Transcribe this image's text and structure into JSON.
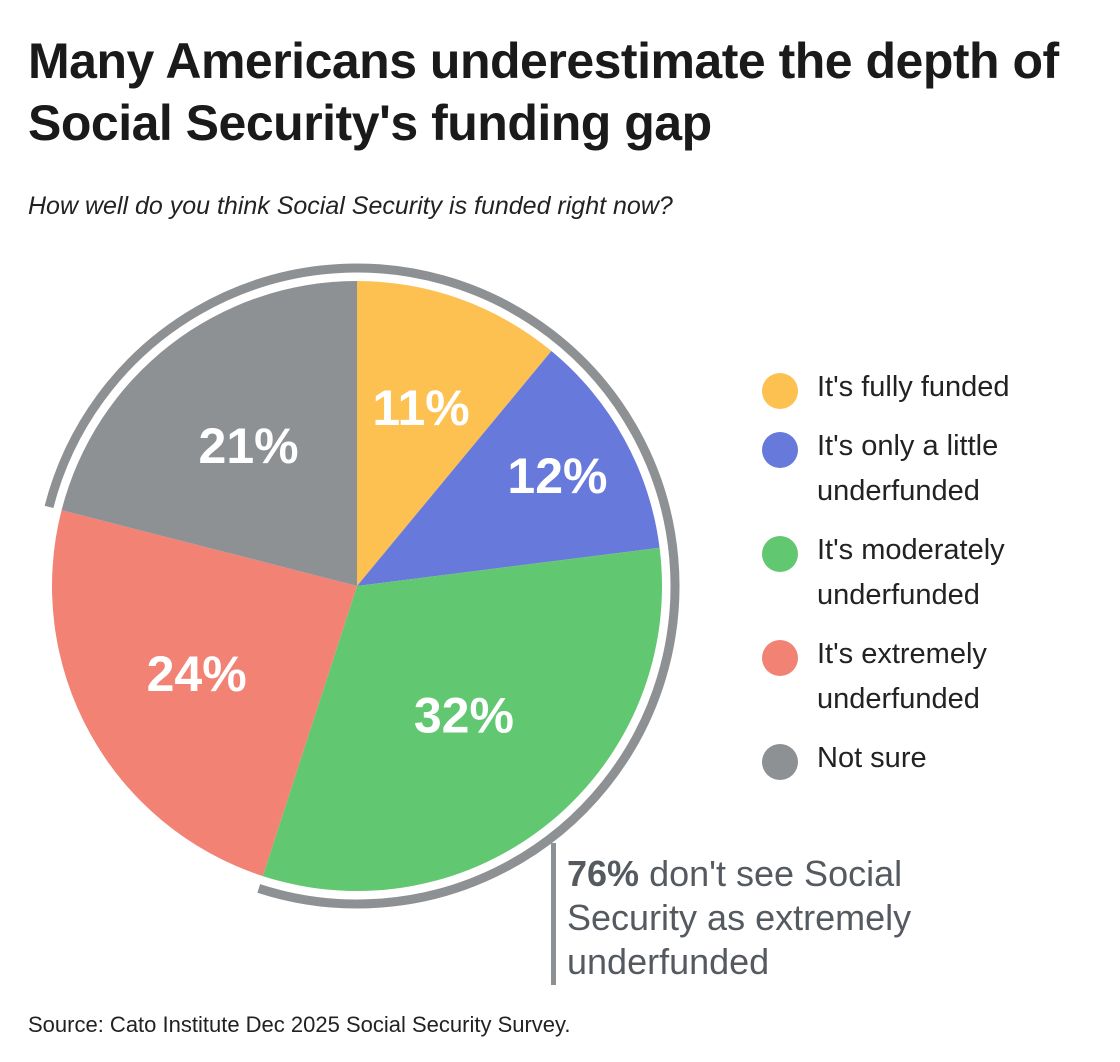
{
  "chart_data": {
    "type": "pie",
    "title": "Many Americans underestimate the depth of Social Security's funding gap",
    "subtitle": "How well do you think Social Security is funded right now?",
    "slices": [
      {
        "name": "It's fully funded",
        "value": 11,
        "label": "11%",
        "color": "#FDC152"
      },
      {
        "name": "It's only a little underfunded",
        "value": 12,
        "label": "12%",
        "color": "#6779DA"
      },
      {
        "name": "It's moderately underfunded",
        "value": 32,
        "label": "32%",
        "color": "#62C771"
      },
      {
        "name": "It's extremely underfunded",
        "value": 24,
        "label": "24%",
        "color": "#F28274"
      },
      {
        "name": "Not sure",
        "value": 21,
        "label": "21%",
        "color": "#8E9194"
      }
    ],
    "legend_placement": "right",
    "annotation": {
      "bold": "76%",
      "text": " don't see Social Security as extremely underfunded",
      "bracket_color": "#8E9194"
    },
    "source": "Source: Cato Institute Dec 2025 Social Security Survey."
  }
}
